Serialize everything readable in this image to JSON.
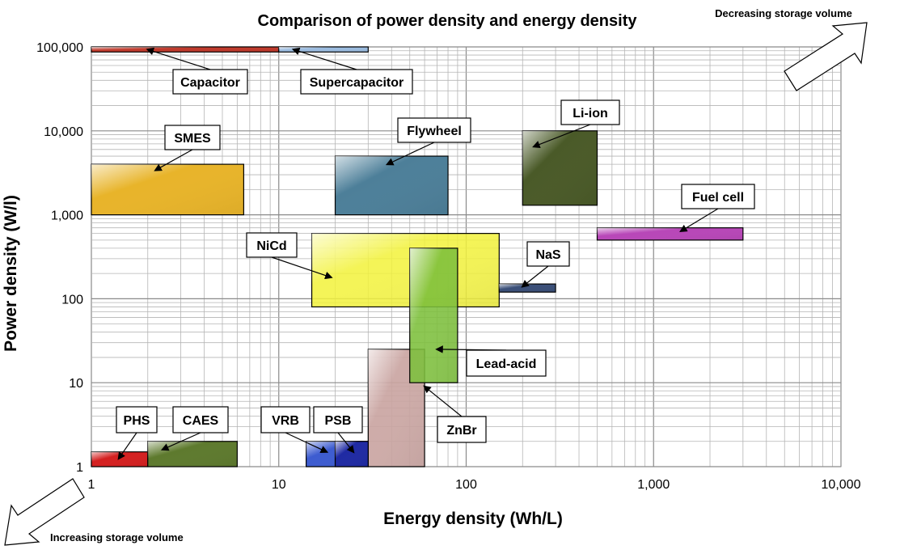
{
  "chart_data": {
    "type": "range-box",
    "title": "Comparison of power density and energy density",
    "xlabel": "Energy density (Wh/L)",
    "ylabel": "Power density (W/l)",
    "x_scale": "log",
    "y_scale": "log",
    "xlim": [
      1,
      10000
    ],
    "ylim": [
      1,
      100000
    ],
    "grid": true,
    "x_ticks": [
      {
        "value": 1,
        "label": "1"
      },
      {
        "value": 10,
        "label": "10"
      },
      {
        "value": 100,
        "label": "100"
      },
      {
        "value": 1000,
        "label": "1,000"
      },
      {
        "value": 10000,
        "label": "10,000"
      }
    ],
    "y_ticks": [
      {
        "value": 1,
        "label": "1"
      },
      {
        "value": 10,
        "label": "10"
      },
      {
        "value": 100,
        "label": "100"
      },
      {
        "value": 1000,
        "label": "1,000"
      },
      {
        "value": 10000,
        "label": "10,000"
      },
      {
        "value": 100000,
        "label": "100,000"
      }
    ],
    "technologies": [
      {
        "name": "Capacitor",
        "x": [
          1,
          10
        ],
        "y": [
          87000,
          100000
        ],
        "color": "#c0392b"
      },
      {
        "name": "Supercapacitor",
        "x": [
          10,
          30
        ],
        "y": [
          87000,
          100000
        ],
        "color": "#9bbce0"
      },
      {
        "name": "SMES",
        "x": [
          1,
          6.5
        ],
        "y": [
          1000,
          4000
        ],
        "color": "#e8b42a"
      },
      {
        "name": "Flywheel",
        "x": [
          20,
          80
        ],
        "y": [
          1000,
          5000
        ],
        "color": "#4d7f99"
      },
      {
        "name": "Li-ion",
        "x": [
          200,
          500
        ],
        "y": [
          1300,
          10000
        ],
        "color": "#4a5a28"
      },
      {
        "name": "Fuel cell",
        "x": [
          500,
          3000
        ],
        "y": [
          500,
          700
        ],
        "color": "#b847b8"
      },
      {
        "name": "NiCd",
        "x": [
          15,
          150
        ],
        "y": [
          80,
          600
        ],
        "color": "#f2f23a"
      },
      {
        "name": "NaS",
        "x": [
          150,
          300
        ],
        "y": [
          120,
          150
        ],
        "color": "#3a4f78"
      },
      {
        "name": "Lead-acid",
        "x": [
          50,
          90
        ],
        "y": [
          10,
          400
        ],
        "color": "#7cbf3a"
      },
      {
        "name": "ZnBr",
        "x": [
          30,
          60
        ],
        "y": [
          1,
          25
        ],
        "color": "#c9a3a0"
      },
      {
        "name": "PHS",
        "x": [
          1,
          2
        ],
        "y": [
          1,
          1.5
        ],
        "color": "#d42020"
      },
      {
        "name": "CAES",
        "x": [
          2,
          6
        ],
        "y": [
          1,
          2
        ],
        "color": "#5e7a2e"
      },
      {
        "name": "VRB",
        "x": [
          14,
          30
        ],
        "y": [
          1,
          2
        ],
        "color": "#3d5cd0"
      },
      {
        "name": "PSB",
        "x": [
          20,
          30
        ],
        "y": [
          1,
          2
        ],
        "color": "#1f2aa3"
      }
    ],
    "annotations": {
      "top_right": "Decreasing storage volume",
      "bottom_left": "Increasing storage volume"
    }
  }
}
